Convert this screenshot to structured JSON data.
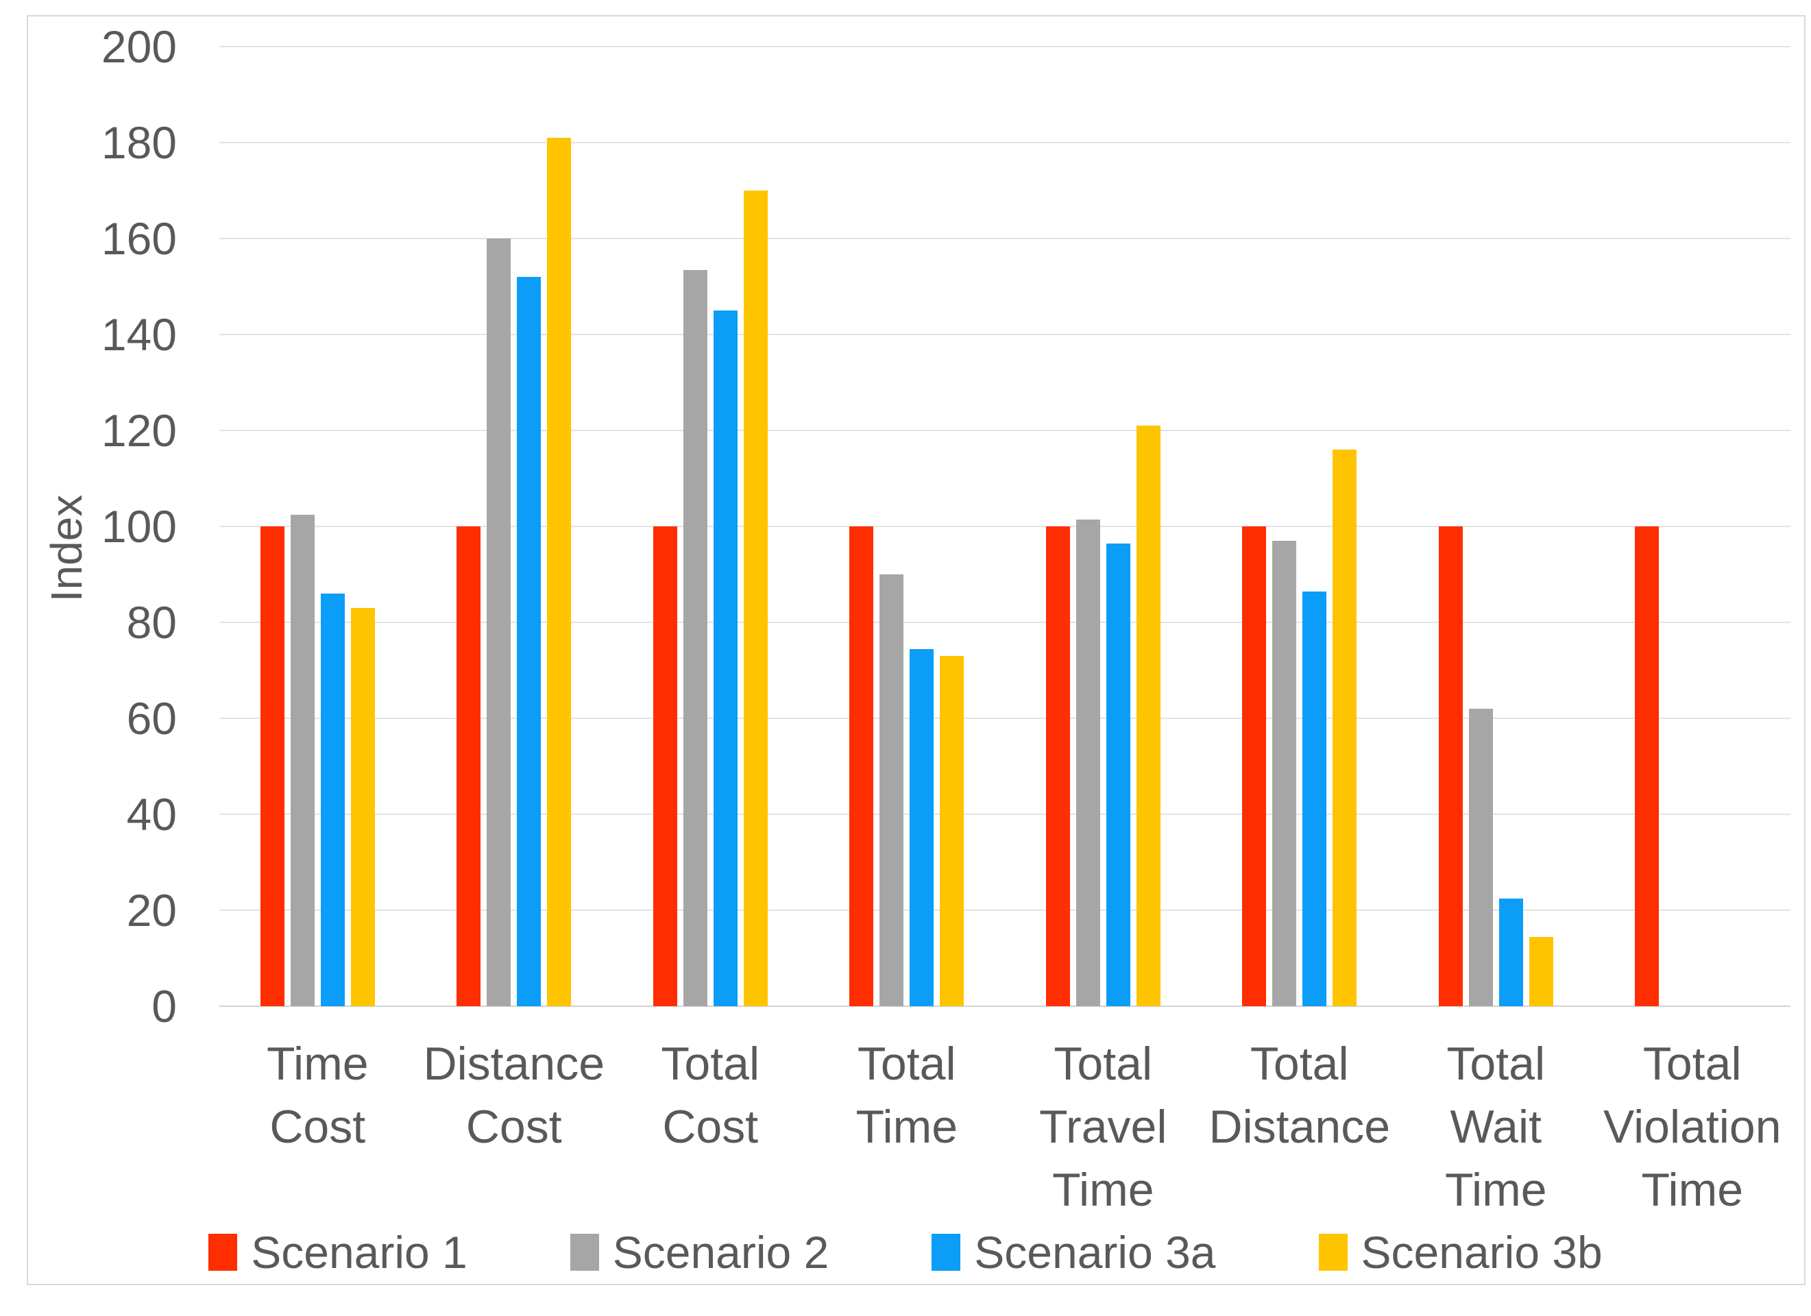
{
  "chart_data": {
    "type": "bar",
    "title": "",
    "ylabel": "Index",
    "ylim": [
      0,
      200
    ],
    "ytick_step": 20,
    "ytick_labels": [
      "200",
      "180",
      "160",
      "140",
      "120",
      "100",
      "80",
      "60",
      "40",
      "20",
      "0"
    ],
    "grid": true,
    "legend_position": "bottom",
    "categories": [
      "Time Cost",
      "Distance Cost",
      "Total Cost",
      "Total Time",
      "Total Travel Time",
      "Total Distance",
      "Total Wait Time",
      "Total Violation Time"
    ],
    "category_labels": [
      "Time\nCost",
      "Distance\nCost",
      "Total\nCost",
      "Total\nTime",
      "Total\nTravel\nTime",
      "Total\nDistance",
      "Total\nWait\nTime",
      "Total\nViolation\nTime"
    ],
    "series": [
      {
        "name": "Scenario 1",
        "color": "#FF2E00",
        "values": [
          100,
          100,
          100,
          100,
          100,
          100,
          100,
          100
        ]
      },
      {
        "name": "Scenario 2",
        "color": "#A6A6A6",
        "values": [
          102.5,
          160,
          153.5,
          90,
          101.5,
          97,
          62,
          0
        ]
      },
      {
        "name": "Scenario 3a",
        "color": "#0B9DF8",
        "values": [
          86,
          152,
          145,
          74.5,
          96.5,
          86.5,
          22.5,
          0
        ]
      },
      {
        "name": "Scenario 3b",
        "color": "#FFC400",
        "values": [
          83,
          181,
          170,
          73,
          121,
          116,
          14.5,
          0
        ]
      }
    ],
    "colors": {
      "text": "#595959",
      "gridline": "#E3E3E3",
      "frame": "#D9D9D9"
    }
  }
}
